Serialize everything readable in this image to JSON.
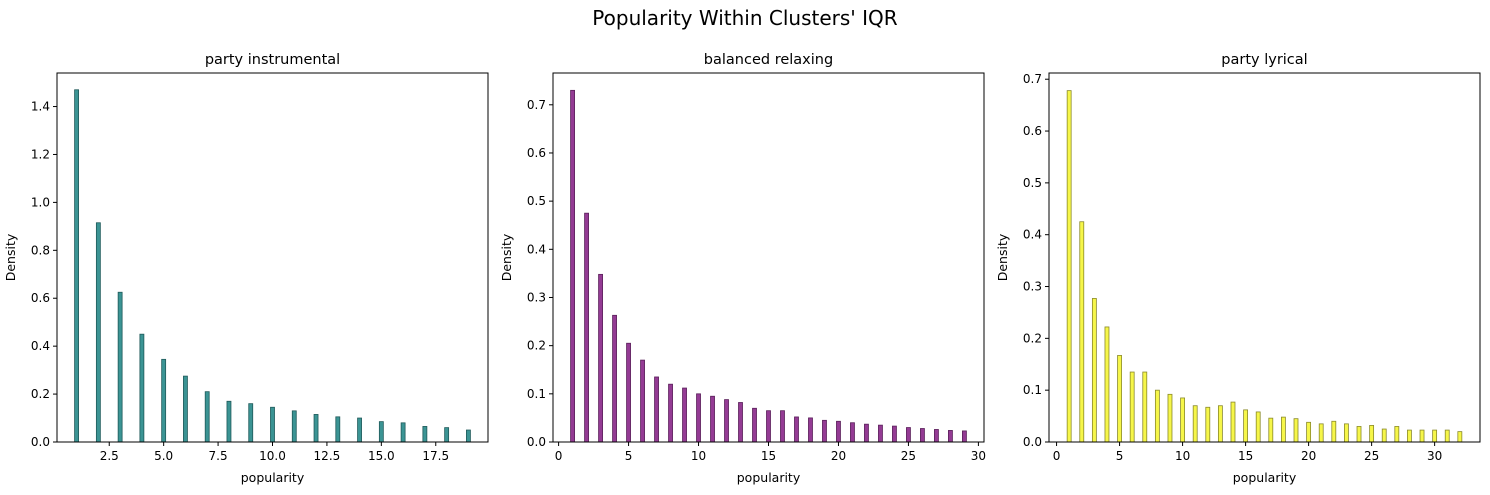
{
  "suptitle": "Popularity Within Clusters' IQR",
  "chart_data": [
    {
      "type": "bar",
      "title": "party instrumental",
      "xlabel": "popularity",
      "ylabel": "Density",
      "color": "#2a8b8b",
      "edge": "#1f5a5a",
      "xlim": [
        0.1,
        19.9
      ],
      "ylim": [
        0,
        1.54
      ],
      "xticks": [
        2.5,
        5.0,
        7.5,
        10.0,
        12.5,
        15.0,
        17.5
      ],
      "xtick_labels": [
        "2.5",
        "5.0",
        "7.5",
        "10.0",
        "12.5",
        "15.0",
        "17.5"
      ],
      "yticks": [
        0,
        0.2,
        0.4,
        0.6,
        0.8,
        1.0,
        1.2,
        1.4
      ],
      "ytick_labels": [
        "0.0",
        "0.2",
        "0.4",
        "0.6",
        "0.8",
        "1.0",
        "1.2",
        "1.4"
      ],
      "x": [
        1,
        2,
        3,
        4,
        5,
        6,
        7,
        8,
        9,
        10,
        11,
        12,
        13,
        14,
        15,
        16,
        17,
        18,
        19
      ],
      "values": [
        1.47,
        0.915,
        0.625,
        0.45,
        0.345,
        0.275,
        0.21,
        0.17,
        0.16,
        0.145,
        0.13,
        0.115,
        0.105,
        0.1,
        0.085,
        0.08,
        0.065,
        0.06,
        0.05
      ]
    },
    {
      "type": "bar",
      "title": "balanced relaxing",
      "xlabel": "popularity",
      "ylabel": "Density",
      "color": "#8b2a8b",
      "edge": "#5a1f5a",
      "xlim": [
        -0.4,
        30.4
      ],
      "ylim": [
        0,
        0.766
      ],
      "xticks": [
        0,
        5,
        10,
        15,
        20,
        25,
        30
      ],
      "xtick_labels": [
        "0",
        "5",
        "10",
        "15",
        "20",
        "25",
        "30"
      ],
      "yticks": [
        0,
        0.1,
        0.2,
        0.3,
        0.4,
        0.5,
        0.6,
        0.7
      ],
      "ytick_labels": [
        "0.0",
        "0.1",
        "0.2",
        "0.3",
        "0.4",
        "0.5",
        "0.6",
        "0.7"
      ],
      "x": [
        1,
        2,
        3,
        4,
        5,
        6,
        7,
        8,
        9,
        10,
        11,
        12,
        13,
        14,
        15,
        16,
        17,
        18,
        19,
        20,
        21,
        22,
        23,
        24,
        25,
        26,
        27,
        28,
        29
      ],
      "values": [
        0.73,
        0.475,
        0.348,
        0.263,
        0.205,
        0.17,
        0.135,
        0.12,
        0.112,
        0.1,
        0.095,
        0.088,
        0.082,
        0.07,
        0.065,
        0.065,
        0.052,
        0.05,
        0.045,
        0.043,
        0.04,
        0.037,
        0.035,
        0.033,
        0.03,
        0.028,
        0.026,
        0.024,
        0.023
      ]
    },
    {
      "type": "bar",
      "title": "party lyrical",
      "xlabel": "popularity",
      "ylabel": "Density",
      "color": "#f5f53a",
      "edge": "#8a8a2a",
      "xlim": [
        -0.6,
        33.6
      ],
      "ylim": [
        0,
        0.712
      ],
      "xticks": [
        0,
        5,
        10,
        15,
        20,
        25,
        30
      ],
      "xtick_labels": [
        "0",
        "5",
        "10",
        "15",
        "20",
        "25",
        "30"
      ],
      "yticks": [
        0,
        0.1,
        0.2,
        0.3,
        0.4,
        0.5,
        0.6,
        0.7
      ],
      "ytick_labels": [
        "0.0",
        "0.1",
        "0.2",
        "0.3",
        "0.4",
        "0.5",
        "0.6",
        "0.7"
      ],
      "x": [
        1,
        2,
        3,
        4,
        5,
        6,
        7,
        8,
        9,
        10,
        11,
        12,
        13,
        14,
        15,
        16,
        17,
        18,
        19,
        20,
        21,
        22,
        23,
        24,
        25,
        26,
        27,
        28,
        29,
        30,
        31,
        32
      ],
      "values": [
        0.678,
        0.425,
        0.277,
        0.222,
        0.167,
        0.135,
        0.135,
        0.1,
        0.092,
        0.085,
        0.07,
        0.067,
        0.07,
        0.077,
        0.062,
        0.058,
        0.046,
        0.048,
        0.045,
        0.038,
        0.035,
        0.04,
        0.035,
        0.03,
        0.032,
        0.025,
        0.03,
        0.023,
        0.023,
        0.023,
        0.023,
        0.02
      ]
    }
  ]
}
